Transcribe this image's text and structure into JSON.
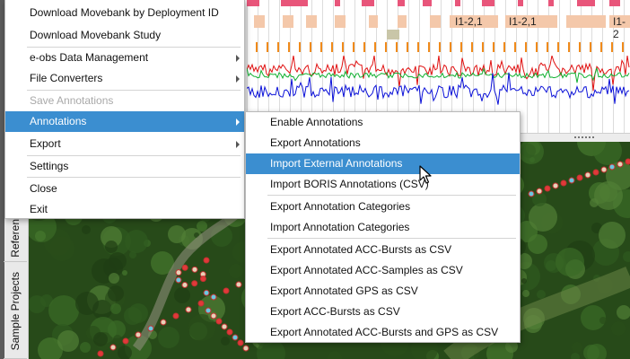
{
  "left_tabs": [
    {
      "label": "Referen"
    },
    {
      "label": "Sample Projects"
    }
  ],
  "tracks": {
    "segment_labels": [
      "I1-2,1",
      "I1-2,1",
      "I1-2"
    ],
    "colors": {
      "top_bar": "#e8557a",
      "segment": "#f4c8aa",
      "gray_box": "#c9c6a8",
      "tick": "#f08a1a",
      "signal_red": "#e01010",
      "signal_green": "#10b030",
      "signal_blue": "#0a10d8"
    }
  },
  "main_menu": {
    "items": [
      {
        "label": "Download Movebank by Deployment ID",
        "state": "normal",
        "submenu": false
      },
      {
        "label": "Download Movebank Study",
        "state": "normal",
        "submenu": false
      },
      {
        "label": "e-obs Data Management",
        "state": "normal",
        "submenu": true
      },
      {
        "label": "File Converters",
        "state": "normal",
        "submenu": true
      },
      {
        "label": "Save Annotations",
        "state": "disabled",
        "submenu": false
      },
      {
        "label": "Annotations",
        "state": "active",
        "submenu": true
      },
      {
        "label": "Export",
        "state": "normal",
        "submenu": true
      },
      {
        "label": "Settings",
        "state": "normal",
        "submenu": false
      },
      {
        "label": "Close",
        "state": "normal",
        "submenu": false
      },
      {
        "label": "Exit",
        "state": "normal",
        "submenu": false
      }
    ]
  },
  "annotations_submenu": {
    "items": [
      {
        "label": "Enable Annotations",
        "state": "normal"
      },
      {
        "label": "Export Annotations",
        "state": "normal"
      },
      {
        "label": "Import External Annotations",
        "state": "active"
      },
      {
        "label": "Import BORIS Annotations (CSV)",
        "state": "normal"
      },
      {
        "label": "Export Annotation Categories",
        "state": "normal"
      },
      {
        "label": "Import Annotation Categories",
        "state": "normal"
      },
      {
        "label": "Export Annotated ACC-Bursts as CSV",
        "state": "normal"
      },
      {
        "label": "Export Annotated ACC-Samples as CSV",
        "state": "normal"
      },
      {
        "label": "Export Annotated GPS as CSV",
        "state": "normal"
      },
      {
        "label": "Export ACC-Bursts as CSV",
        "state": "normal"
      },
      {
        "label": "Export Annotated ACC-Bursts and GPS as CSV",
        "state": "normal"
      }
    ]
  },
  "icons": {
    "submenu_arrow": "chevron-right-icon",
    "cursor": "mouse-pointer-icon"
  },
  "colors": {
    "menu_highlight": "#3b8ed0",
    "menu_disabled_text": "#a9a9a9",
    "map_forest": "#274a19",
    "track_point_red": "#e03a3a",
    "track_point_pale": "#e8d2b8",
    "track_point_cyan": "#6ac8e0"
  }
}
